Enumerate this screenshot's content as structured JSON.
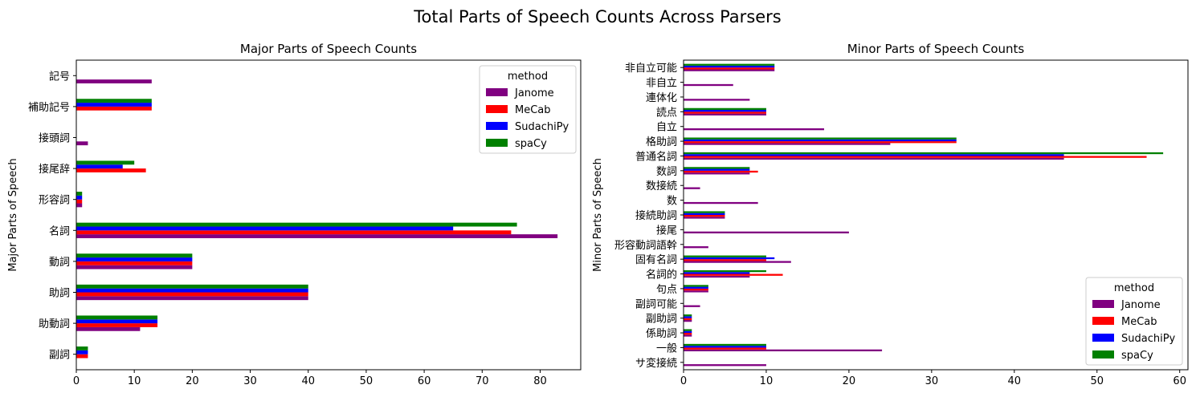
{
  "suptitle": "Total Parts of Speech Counts Across Parsers",
  "colors": {
    "Janome": "#800080",
    "MeCab": "#ff0000",
    "SudachiPy": "#0000ff",
    "spaCy": "#008000"
  },
  "chart_data": [
    {
      "type": "bar",
      "orientation": "horizontal",
      "title": "Major Parts of Speech Counts",
      "xlabel": "",
      "ylabel": "Major Parts of Speech",
      "xlim": [
        0,
        87
      ],
      "xticks": [
        0,
        10,
        20,
        30,
        40,
        50,
        60,
        70,
        80
      ],
      "legend": {
        "title": "method",
        "placement": "top-right"
      },
      "categories": [
        "副詞",
        "助動詞",
        "助詞",
        "動詞",
        "名詞",
        "形容詞",
        "接尾辞",
        "接頭詞",
        "補助記号",
        "記号"
      ],
      "series": [
        {
          "name": "Janome",
          "values": [
            0,
            11,
            40,
            20,
            83,
            1,
            0,
            2,
            0,
            13
          ]
        },
        {
          "name": "MeCab",
          "values": [
            2,
            14,
            40,
            20,
            75,
            1,
            12,
            0,
            13,
            0
          ]
        },
        {
          "name": "SudachiPy",
          "values": [
            2,
            14,
            40,
            20,
            65,
            1,
            8,
            0,
            13,
            0
          ]
        },
        {
          "name": "spaCy",
          "values": [
            2,
            14,
            40,
            20,
            76,
            1,
            10,
            0,
            13,
            0
          ]
        }
      ]
    },
    {
      "type": "bar",
      "orientation": "horizontal",
      "title": "Minor Parts of Speech Counts",
      "xlabel": "",
      "ylabel": "Minor Parts of Speech",
      "xlim": [
        0,
        61
      ],
      "xticks": [
        0,
        10,
        20,
        30,
        40,
        50,
        60
      ],
      "legend": {
        "title": "method",
        "placement": "bottom-right"
      },
      "categories": [
        "サ変接続",
        "一般",
        "係助詞",
        "副助詞",
        "副詞可能",
        "句点",
        "名詞的",
        "固有名詞",
        "形容動詞語幹",
        "接尾",
        "接続助詞",
        "数",
        "数接続",
        "数詞",
        "普通名詞",
        "格助詞",
        "自立",
        "読点",
        "連体化",
        "非自立",
        "非自立可能"
      ],
      "series": [
        {
          "name": "Janome",
          "values": [
            10,
            24,
            1,
            1,
            2,
            3,
            8,
            13,
            3,
            20,
            5,
            9,
            2,
            8,
            46,
            25,
            17,
            10,
            8,
            6,
            11
          ]
        },
        {
          "name": "MeCab",
          "values": [
            0,
            10,
            1,
            1,
            0,
            3,
            12,
            10,
            0,
            0,
            5,
            0,
            0,
            9,
            56,
            33,
            0,
            10,
            0,
            0,
            11
          ]
        },
        {
          "name": "SudachiPy",
          "values": [
            0,
            10,
            1,
            1,
            0,
            3,
            8,
            11,
            0,
            0,
            5,
            0,
            0,
            8,
            46,
            33,
            0,
            10,
            0,
            0,
            11
          ]
        },
        {
          "name": "spaCy",
          "values": [
            0,
            10,
            1,
            1,
            0,
            3,
            10,
            10,
            0,
            0,
            5,
            0,
            0,
            8,
            58,
            33,
            0,
            10,
            0,
            0,
            11
          ]
        }
      ]
    }
  ]
}
